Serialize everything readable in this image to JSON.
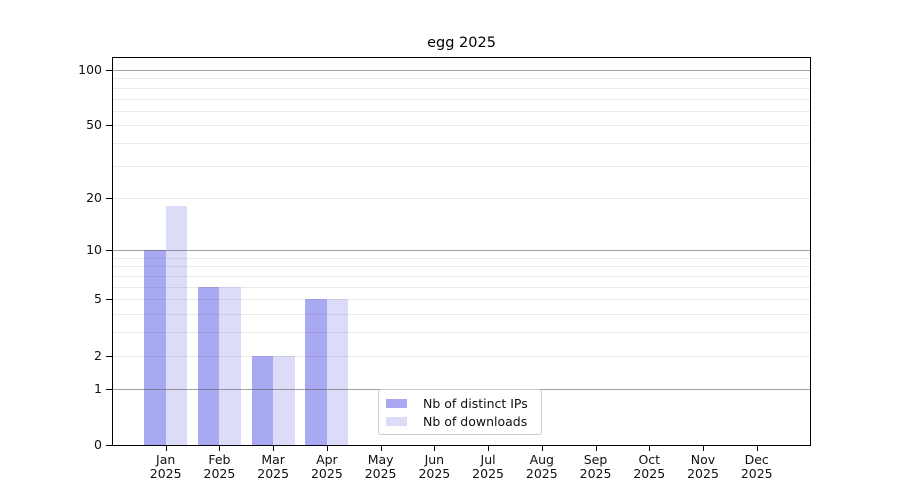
{
  "chart_data": {
    "type": "bar",
    "title": "egg 2025",
    "categories": [
      {
        "month": "Jan",
        "year": "2025"
      },
      {
        "month": "Feb",
        "year": "2025"
      },
      {
        "month": "Mar",
        "year": "2025"
      },
      {
        "month": "Apr",
        "year": "2025"
      },
      {
        "month": "May",
        "year": "2025"
      },
      {
        "month": "Jun",
        "year": "2025"
      },
      {
        "month": "Jul",
        "year": "2025"
      },
      {
        "month": "Aug",
        "year": "2025"
      },
      {
        "month": "Sep",
        "year": "2025"
      },
      {
        "month": "Oct",
        "year": "2025"
      },
      {
        "month": "Nov",
        "year": "2025"
      },
      {
        "month": "Dec",
        "year": "2025"
      }
    ],
    "series": [
      {
        "id": "distinct-ips",
        "name": "Nb of distinct IPs",
        "color": "#a9a9f3",
        "values": [
          10,
          6,
          2,
          5,
          0,
          0,
          0,
          0,
          0,
          0,
          0,
          0
        ]
      },
      {
        "id": "downloads",
        "name": "Nb of downloads",
        "color": "#dcdcf8",
        "values": [
          18,
          6,
          2,
          5,
          0,
          0,
          0,
          0,
          0,
          0,
          0,
          0
        ]
      }
    ],
    "y_axis": {
      "scale": "log10(1+v)",
      "ylim": [
        0,
        116
      ],
      "tick_values": [
        0,
        1,
        2,
        5,
        10,
        20,
        50,
        100
      ],
      "major_gridlines": [
        1,
        10,
        100
      ],
      "minor_gridlines": [
        2,
        3,
        4,
        5,
        6,
        7,
        8,
        9,
        20,
        30,
        40,
        50,
        60,
        70,
        80,
        90
      ]
    },
    "legend": {
      "position": "lower-center"
    },
    "grid": "horizontal-only",
    "colors": {
      "major_grid": "#adadad",
      "minor_grid": "#e9e9e9",
      "spine": "#000000",
      "text": "#111111",
      "background": "#ffffff"
    }
  }
}
